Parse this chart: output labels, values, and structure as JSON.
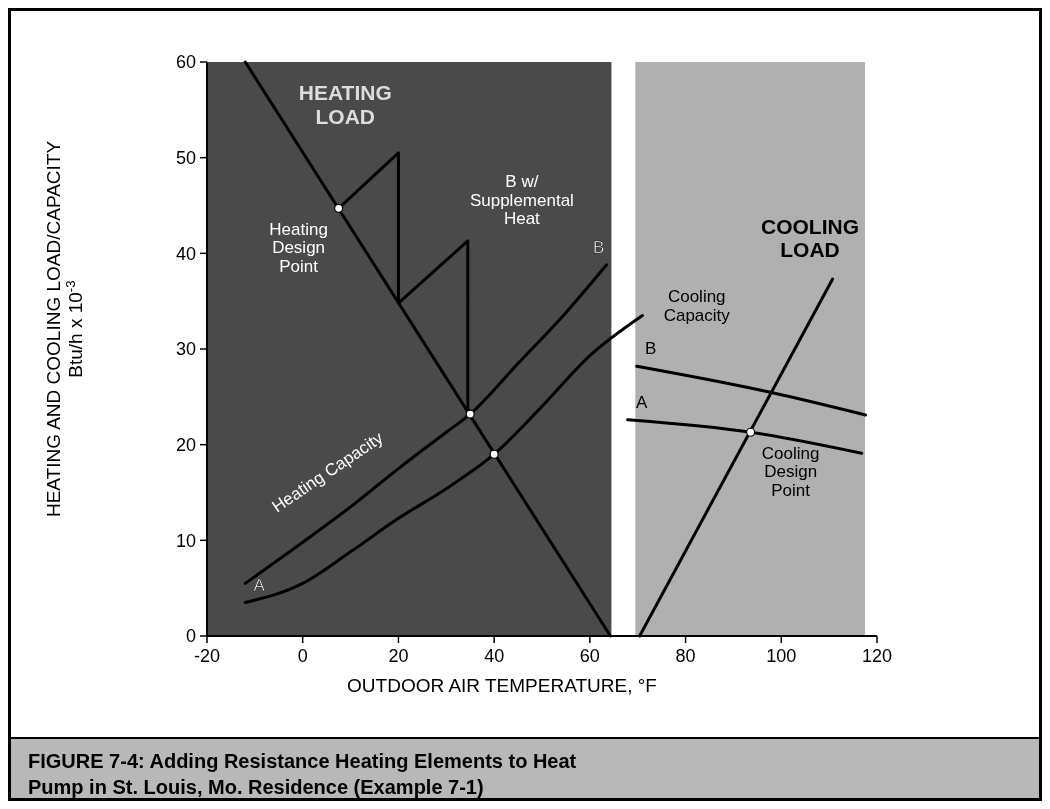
{
  "chart_data": {
    "type": "line",
    "title": "FIGURE 7-4: Adding Resistance Heating Elements to Heat Pump in St. Louis, Mo. Residence (Example 7-1)",
    "xlabel": "OUTDOOR AIR TEMPERATURE, °F",
    "ylabel": "HEATING AND COOLING LOAD/CAPACITY\nBtu/h x 10$^{-3}$",
    "xlim": [
      -20,
      120
    ],
    "xticks": [
      -20,
      0,
      20,
      40,
      60,
      80,
      100,
      120
    ],
    "ylim": [
      0,
      60
    ],
    "yticks": [
      0,
      10,
      20,
      30,
      40,
      50,
      60
    ],
    "grid": false,
    "line_style": "solid",
    "bands": [
      {
        "axis": "x",
        "from": -20,
        "to": 64.5,
        "color": "#4a4a4a"
      },
      {
        "axis": "x",
        "from": 69.5,
        "to": 117.5,
        "color": "#b0b0b0"
      }
    ],
    "series": [
      {
        "color": "#000000",
        "x": [
          -12,
          64.3
        ],
        "values": [
          60,
          0
        ]
      },
      {
        "name": "B",
        "color": "#000000",
        "x": [
          -12,
          0,
          10,
          20,
          30,
          35,
          45,
          55,
          63.5
        ],
        "values": [
          5.5,
          9.8,
          13.5,
          17.5,
          21.3,
          23.2,
          28.5,
          33.8,
          38.8
        ]
      },
      {
        "name": "A",
        "color": "#000000",
        "x": [
          -12,
          0,
          10,
          20,
          30,
          40,
          50,
          60,
          71
        ],
        "values": [
          3.5,
          5.5,
          8.8,
          12.3,
          15.4,
          19,
          24,
          29.3,
          33.5
        ]
      },
      {
        "color": "#000000",
        "x": [
          7.5,
          20,
          20,
          34.5,
          34.5
        ],
        "values": [
          44.7,
          50.5,
          34.8,
          41.3,
          23.3
        ]
      },
      {
        "color": "#000000",
        "x": [
          70.4,
          110.7
        ],
        "values": [
          0,
          37.3
        ]
      },
      {
        "name": "B",
        "color": "#000000",
        "x": [
          69.8,
          97.5,
          117.6
        ],
        "values": [
          28.2,
          25.5,
          23.1
        ]
      },
      {
        "name": "A",
        "color": "#000000",
        "x": [
          67.9,
          93.6,
          116.8
        ],
        "values": [
          22.6,
          21.3,
          19.1
        ]
      },
      {
        "type": "scatter",
        "marker": "circle",
        "color": "#ffffff",
        "x": [
          7.5,
          35,
          40,
          93.6
        ],
        "values": [
          44.7,
          23.2,
          19,
          21.3
        ]
      }
    ],
    "annotations": [
      {
        "text": "HEATING LOAD",
        "x": -12,
        "y": 60
      },
      "B w/ Supplemental Heat",
      {
        "text": "Heating Design Point",
        "x": 7.5,
        "y": 44.7
      },
      {
        "text": "Heating Capacity",
        "x": 10,
        "y": 13.5
      },
      "COOLING LOAD",
      {
        "text": "Cooling Capacity",
        "x": 69.8,
        "y": 28.2
      },
      {
        "text": "Cooling Design Point",
        "x": 93.6,
        "y": 21.3
      }
    ]
  }
}
